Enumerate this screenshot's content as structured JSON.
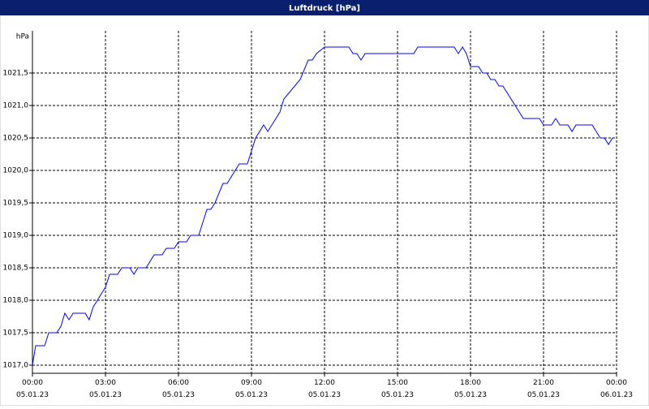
{
  "chart_data": {
    "type": "line",
    "title": "Luftdruck [hPa]",
    "y_label": "hPa",
    "x": [
      0,
      0.13,
      0.5,
      0.67,
      1,
      1.17,
      1.33,
      1.5,
      1.67,
      2.17,
      2.33,
      2.5,
      2.67,
      2.83,
      3,
      3.17,
      3.5,
      3.67,
      4,
      4.17,
      4.33,
      4.67,
      5,
      5.33,
      5.5,
      5.83,
      6,
      6.33,
      6.5,
      6.83,
      7.17,
      7.33,
      7.5,
      7.83,
      8,
      8.33,
      8.5,
      8.83,
      9.17,
      9.5,
      9.67,
      10.17,
      10.33,
      11,
      11.33,
      11.5,
      11.67,
      12,
      13,
      13.17,
      13.33,
      13.5,
      13.67,
      15.67,
      15.83,
      17.33,
      17.5,
      17.67,
      17.83,
      18,
      18.33,
      18.5,
      18.67,
      18.83,
      19,
      19.17,
      19.33,
      20.17,
      20.83,
      21,
      21.33,
      21.5,
      21.67,
      22,
      22.17,
      22.33,
      23,
      23.33,
      23.5,
      23.67,
      23.83
    ],
    "series": [
      {
        "name": "Luftdruck",
        "color": "#0000ff",
        "values": [
          1017.0,
          1017.3,
          1017.3,
          1017.5,
          1017.5,
          1017.6,
          1017.8,
          1017.7,
          1017.8,
          1017.8,
          1017.7,
          1017.9,
          1018.0,
          1018.1,
          1018.2,
          1018.4,
          1018.4,
          1018.5,
          1018.5,
          1018.4,
          1018.5,
          1018.5,
          1018.7,
          1018.7,
          1018.8,
          1018.8,
          1018.9,
          1018.9,
          1019.0,
          1019.0,
          1019.4,
          1019.4,
          1019.5,
          1019.8,
          1019.8,
          1020.0,
          1020.1,
          1020.1,
          1020.5,
          1020.7,
          1020.6,
          1020.9,
          1021.1,
          1021.4,
          1021.7,
          1021.7,
          1021.8,
          1021.9,
          1021.9,
          1021.8,
          1021.8,
          1021.7,
          1021.8,
          1021.8,
          1021.9,
          1021.9,
          1021.8,
          1021.9,
          1021.8,
          1021.6,
          1021.6,
          1021.5,
          1021.5,
          1021.4,
          1021.4,
          1021.3,
          1021.3,
          1020.8,
          1020.8,
          1020.7,
          1020.7,
          1020.8,
          1020.7,
          1020.7,
          1020.6,
          1020.7,
          1020.7,
          1020.5,
          1020.5,
          1020.4,
          1020.5
        ]
      }
    ],
    "xlim": [
      0,
      24
    ],
    "xticks": [
      {
        "value": 0,
        "label": "00:00 05.01.23"
      },
      {
        "value": 3,
        "label": "03:00 05.01.23"
      },
      {
        "value": 6,
        "label": "06:00 05.01.23"
      },
      {
        "value": 9,
        "label": "09:00 05.01.23"
      },
      {
        "value": 12,
        "label": "12:00 05.01.23"
      },
      {
        "value": 15,
        "label": "15:00 05.01.23"
      },
      {
        "value": 18,
        "label": "18:00 05.01.23"
      },
      {
        "value": 21,
        "label": "21:00 05.01.23"
      },
      {
        "value": 24,
        "label": "00:00 06.01.23"
      }
    ],
    "ylim": [
      1016.875,
      1022.15
    ],
    "yticks": [
      {
        "value": 1017,
        "label": "1017,0"
      },
      {
        "value": 1017.5,
        "label": "1017,5"
      },
      {
        "value": 1018,
        "label": "1018,0"
      },
      {
        "value": 1018.5,
        "label": "1018,5"
      },
      {
        "value": 1019,
        "label": "1019,0"
      },
      {
        "value": 1019.5,
        "label": "1019,5"
      },
      {
        "value": 1020,
        "label": "1020,0"
      },
      {
        "value": 1020.5,
        "label": "1020,5"
      },
      {
        "value": 1021,
        "label": "1021,0"
      },
      {
        "value": 1021.5,
        "label": "1021,5"
      }
    ],
    "grid": true
  }
}
